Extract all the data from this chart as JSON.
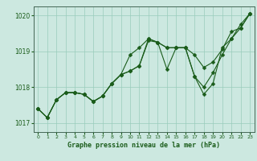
{
  "xlabel": "Graphe pression niveau de la mer (hPa)",
  "background_color": "#cce8e0",
  "plot_bg_color": "#cce8e0",
  "grid_color": "#99ccbb",
  "line_color": "#1a5c1a",
  "marker_color": "#1a5c1a",
  "ylim": [
    1016.75,
    1020.25
  ],
  "xlim": [
    -0.5,
    23.5
  ],
  "yticks": [
    1017,
    1018,
    1019,
    1020
  ],
  "xticks": [
    0,
    1,
    2,
    3,
    4,
    5,
    6,
    7,
    8,
    9,
    10,
    11,
    12,
    13,
    14,
    15,
    16,
    17,
    18,
    19,
    20,
    21,
    22,
    23
  ],
  "series": [
    [
      1017.4,
      1017.15,
      1017.65,
      1017.85,
      1017.85,
      1017.8,
      1017.6,
      1017.75,
      1018.1,
      1018.35,
      1018.45,
      1018.6,
      1019.3,
      1019.25,
      1019.1,
      1019.1,
      1019.1,
      1018.9,
      1018.55,
      1018.7,
      1019.05,
      1019.55,
      1019.65,
      1020.05
    ],
    [
      1017.4,
      1017.15,
      1017.65,
      1017.85,
      1017.85,
      1017.8,
      1017.6,
      1017.75,
      1018.1,
      1018.35,
      1018.9,
      1019.1,
      1019.35,
      1019.25,
      1019.1,
      1019.1,
      1019.1,
      1018.3,
      1018.0,
      1018.4,
      1018.9,
      1019.35,
      1019.65,
      1020.05
    ],
    [
      1017.4,
      1017.15,
      1017.65,
      1017.85,
      1017.85,
      1017.8,
      1017.6,
      1017.75,
      1018.1,
      1018.35,
      1018.45,
      1018.6,
      1019.35,
      1019.25,
      1018.5,
      1019.1,
      1019.1,
      1018.3,
      1017.8,
      1018.1,
      1019.1,
      1019.35,
      1019.75,
      1020.05
    ]
  ]
}
